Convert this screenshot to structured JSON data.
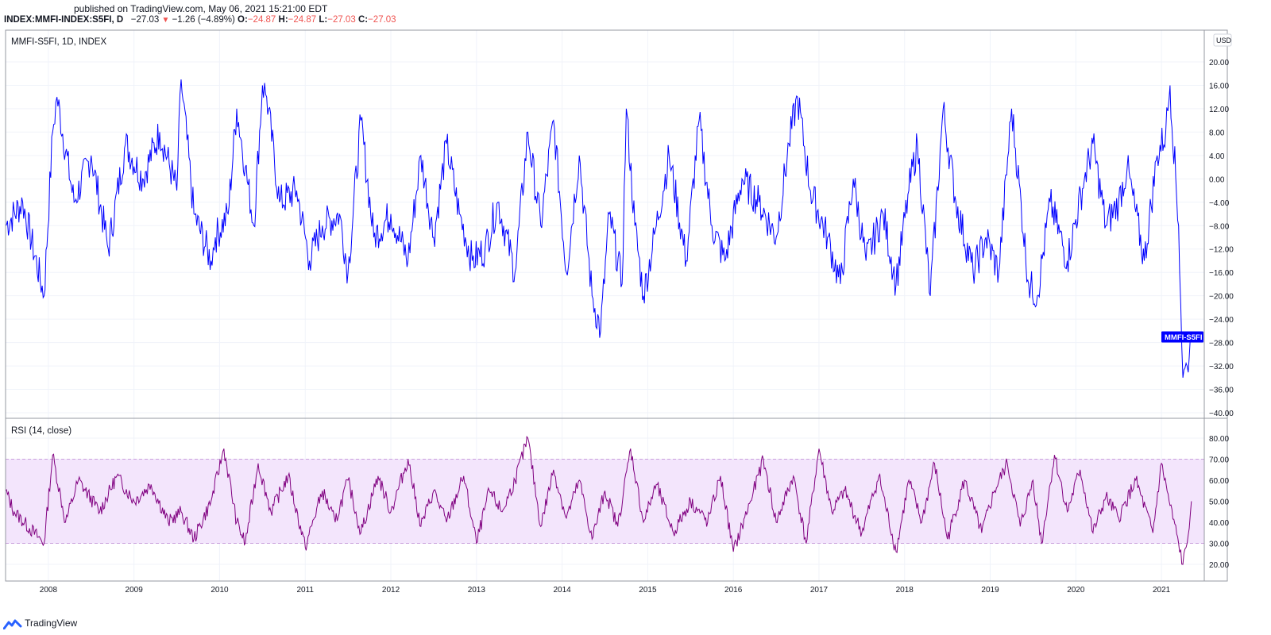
{
  "header": {
    "published": "published on TradingView.com, May 06, 2021 15:21:00 EDT",
    "symbol": "INDEX:MMFI-INDEX:S5FI, D",
    "last": "−27.03",
    "change": "−1.26 (−4.89%)",
    "o_label": "O:",
    "o_value": "−24.87",
    "h_label": "H:",
    "h_value": "−24.87",
    "l_label": "L:",
    "l_value": "−27.03",
    "c_label": "C:",
    "c_value": "−27.03"
  },
  "footer": {
    "brand": "TradingView",
    "brand_icon": "tradingview-logo-icon"
  },
  "chart_data": [
    {
      "type": "line",
      "title": "MMFI-S5FI, 1D, INDEX",
      "currency": "USD",
      "series": [
        {
          "name": "MMFI-S5FI",
          "color": "#0000ff",
          "x": [
            2007.5,
            2007.7,
            2007.95,
            2008.05,
            2008.1,
            2008.3,
            2008.5,
            2008.7,
            2008.9,
            2009.1,
            2009.3,
            2009.5,
            2009.55,
            2009.7,
            2009.9,
            2009.95,
            2010.1,
            2010.2,
            2010.3,
            2010.4,
            2010.5,
            2010.55,
            2010.7,
            2010.9,
            2011.05,
            2011.2,
            2011.4,
            2011.5,
            2011.65,
            2011.8,
            2012.0,
            2012.2,
            2012.35,
            2012.5,
            2012.65,
            2012.8,
            2012.95,
            2013.1,
            2013.25,
            2013.45,
            2013.6,
            2013.75,
            2013.9,
            2014.05,
            2014.2,
            2014.35,
            2014.45,
            2014.55,
            2014.7,
            2014.75,
            2014.85,
            2014.95,
            2015.1,
            2015.25,
            2015.45,
            2015.6,
            2015.75,
            2015.9,
            2016.1,
            2016.3,
            2016.5,
            2016.65,
            2016.75,
            2016.9,
            2017.1,
            2017.25,
            2017.4,
            2017.55,
            2017.75,
            2017.9,
            2018.05,
            2018.15,
            2018.3,
            2018.45,
            2018.6,
            2018.8,
            2018.95,
            2019.1,
            2019.25,
            2019.45,
            2019.55,
            2019.7,
            2019.9,
            2020.1,
            2020.2,
            2020.35,
            2020.5,
            2020.6,
            2020.8,
            2020.95,
            2021.05,
            2021.1,
            2021.2,
            2021.25,
            2021.3,
            2021.35
          ],
          "y": [
            -8,
            -4,
            -20,
            8,
            14,
            -4,
            4,
            -12,
            6,
            0,
            8,
            -2,
            17,
            -6,
            -14,
            -10,
            -6,
            12,
            2,
            -8,
            16,
            14,
            -4,
            -2,
            -14,
            -8,
            -6,
            -16,
            10,
            -10,
            -6,
            -14,
            4,
            -10,
            6,
            -6,
            -14,
            -12,
            -4,
            -16,
            8,
            -8,
            10,
            -16,
            4,
            -20,
            -26,
            -6,
            -18,
            12,
            -8,
            -20,
            -8,
            4,
            -14,
            10,
            -8,
            -14,
            0,
            -4,
            -10,
            6,
            14,
            -2,
            -10,
            -18,
            0,
            -14,
            -6,
            -18,
            -2,
            6,
            -20,
            12,
            -4,
            -16,
            -10,
            -16,
            12,
            -18,
            -20,
            -4,
            -14,
            0,
            6,
            -8,
            -4,
            2,
            -14,
            4,
            8,
            16,
            -8,
            -34,
            -32,
            -27
          ]
        }
      ],
      "ylim": [
        -40,
        24
      ],
      "yticks": [
        "20.00",
        "16.00",
        "12.00",
        "8.00",
        "4.00",
        "0.00",
        "−4.00",
        "−8.00",
        "−12.00",
        "−16.00",
        "−20.00",
        "−24.00",
        "−28.00",
        "−32.00",
        "−36.00",
        "−40.00"
      ],
      "xticks": [
        "2008",
        "2009",
        "2010",
        "2011",
        "2012",
        "2013",
        "2014",
        "2015",
        "2016",
        "2017",
        "2018",
        "2019",
        "2020",
        "2021"
      ],
      "xlim": [
        2007.5,
        2021.5
      ],
      "grid": true,
      "price_label": "MMFI-S5FI",
      "price_label_value": -27.03
    },
    {
      "type": "line",
      "title": "RSI (14, close)",
      "series": [
        {
          "color": "#800080",
          "x": [
            2007.5,
            2007.6,
            2007.95,
            2008.05,
            2008.2,
            2008.35,
            2008.6,
            2008.8,
            2009.0,
            2009.2,
            2009.4,
            2009.55,
            2009.7,
            2009.9,
            2010.05,
            2010.2,
            2010.3,
            2010.45,
            2010.6,
            2010.8,
            2011.0,
            2011.2,
            2011.35,
            2011.5,
            2011.65,
            2011.85,
            2012.0,
            2012.2,
            2012.35,
            2012.5,
            2012.65,
            2012.85,
            2013.0,
            2013.15,
            2013.3,
            2013.45,
            2013.6,
            2013.75,
            2013.9,
            2014.05,
            2014.2,
            2014.35,
            2014.5,
            2014.65,
            2014.8,
            2014.95,
            2015.1,
            2015.3,
            2015.5,
            2015.7,
            2015.85,
            2016.0,
            2016.2,
            2016.35,
            2016.5,
            2016.7,
            2016.85,
            2017.0,
            2017.15,
            2017.3,
            2017.5,
            2017.7,
            2017.9,
            2018.05,
            2018.2,
            2018.35,
            2018.5,
            2018.7,
            2018.9,
            2019.05,
            2019.2,
            2019.35,
            2019.5,
            2019.6,
            2019.75,
            2019.9,
            2020.05,
            2020.2,
            2020.35,
            2020.5,
            2020.7,
            2020.9,
            2021.0,
            2021.1,
            2021.2,
            2021.25,
            2021.3,
            2021.35
          ],
          "y": [
            55,
            45,
            30,
            72,
            40,
            60,
            45,
            62,
            50,
            58,
            40,
            45,
            32,
            50,
            75,
            40,
            30,
            68,
            45,
            62,
            28,
            55,
            40,
            60,
            35,
            62,
            45,
            70,
            38,
            55,
            40,
            62,
            30,
            55,
            45,
            60,
            80,
            38,
            65,
            42,
            60,
            32,
            55,
            38,
            75,
            40,
            58,
            35,
            50,
            40,
            62,
            26,
            50,
            70,
            40,
            62,
            30,
            75,
            45,
            55,
            35,
            62,
            26,
            60,
            40,
            68,
            32,
            60,
            35,
            55,
            68,
            38,
            60,
            30,
            72,
            45,
            65,
            35,
            52,
            42,
            60,
            35,
            68,
            48,
            30,
            20,
            30,
            50
          ]
        }
      ],
      "ylim": [
        15,
        85
      ],
      "yticks": [
        "80.00",
        "70.00",
        "60.00",
        "50.00",
        "40.00",
        "30.00",
        "20.00"
      ],
      "bands": {
        "upper": 70,
        "lower": 30,
        "fill": "#f3e5fc"
      }
    }
  ]
}
